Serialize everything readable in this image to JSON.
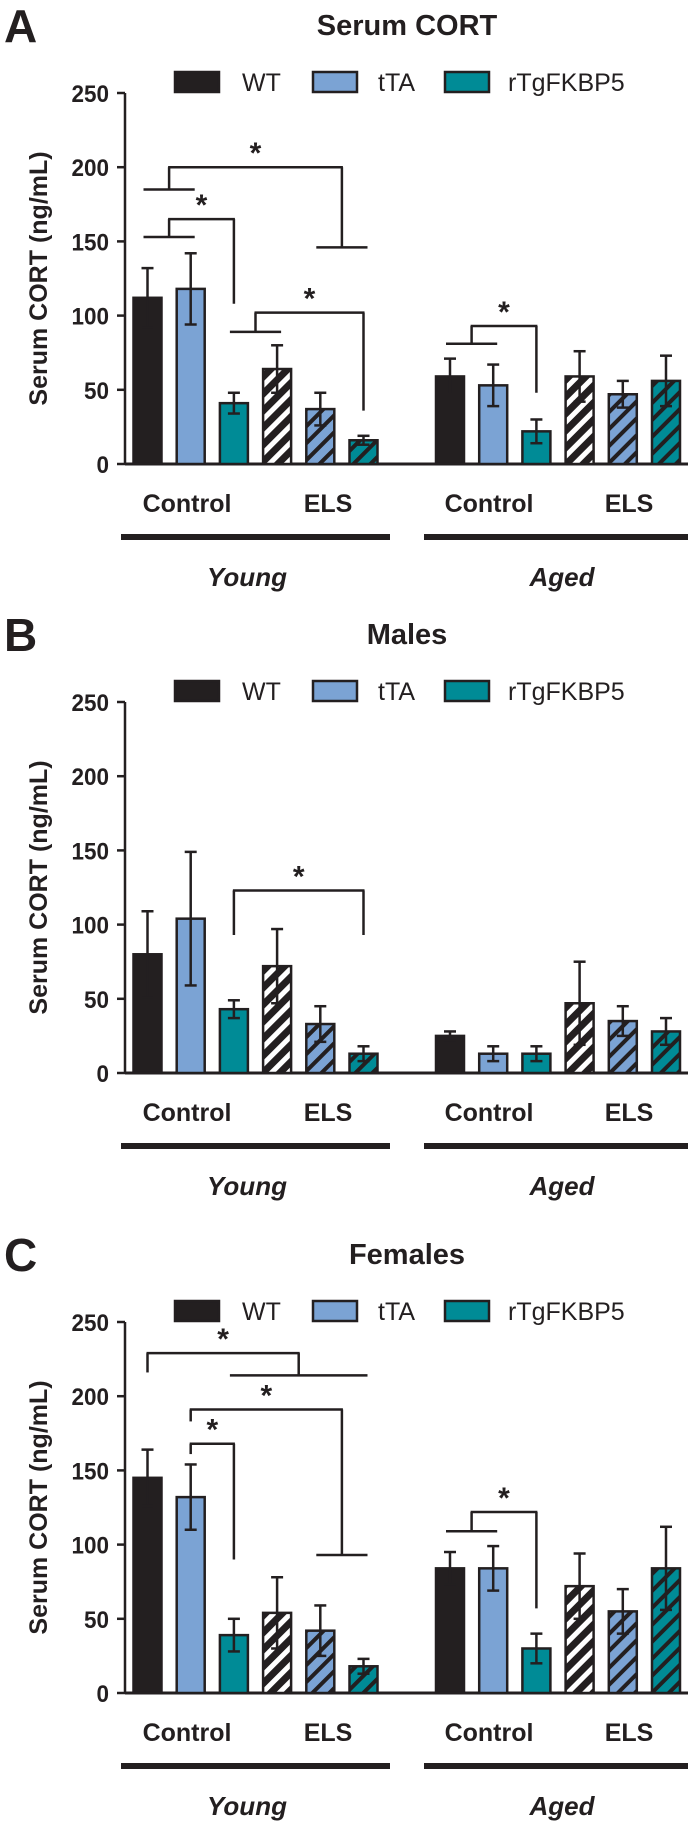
{
  "chart_data": [
    {
      "panel_label": "A",
      "type": "bar",
      "title": "Serum CORT",
      "ylabel": "Serum CORT (ng/mL)",
      "xlabel": "",
      "ylim": [
        0,
        250
      ],
      "yticks": [
        "0",
        "50",
        "100",
        "150",
        "200",
        "250"
      ],
      "legend_position": "top",
      "categories": [
        "Young Control",
        "Young ELS",
        "Aged Control",
        "Aged ELS"
      ],
      "condition_labels": [
        "Control",
        "ELS",
        "Control",
        "ELS"
      ],
      "group_labels": [
        "Young",
        "Aged"
      ],
      "series": [
        {
          "name": "WT",
          "color": "#231f20",
          "values": [
            112,
            64,
            59,
            59
          ],
          "errors": [
            20,
            16,
            12,
            17
          ]
        },
        {
          "name": "tTA",
          "color": "#7ba3d4",
          "values": [
            118,
            37,
            53,
            47
          ],
          "errors": [
            24,
            11,
            14,
            9
          ]
        },
        {
          "name": "rTgFKBP5",
          "color": "#008b96",
          "values": [
            41,
            16,
            22,
            56
          ],
          "errors": [
            7,
            3,
            8,
            17
          ]
        }
      ],
      "significance": [
        {
          "left": {
            "bars": [
              0,
              1
            ],
            "y": 185
          },
          "right": {
            "bars": [
              4,
              5
            ],
            "y": 146
          },
          "top": 200,
          "label": "*"
        },
        {
          "left": {
            "bars": [
              0,
              1
            ],
            "y": 153
          },
          "right": {
            "bars": [
              2,
              2
            ],
            "y": 108
          },
          "top": 165,
          "label": "*"
        },
        {
          "left": {
            "bars": [
              2,
              3
            ],
            "y": 89
          },
          "right": {
            "bars": [
              5,
              5
            ],
            "y": 36
          },
          "top": 102,
          "label": "*"
        },
        {
          "left": {
            "bars": [
              6,
              7
            ],
            "y": 81
          },
          "right": {
            "bars": [
              8,
              8
            ],
            "y": 48
          },
          "top": 93,
          "label": "*"
        }
      ]
    },
    {
      "panel_label": "B",
      "type": "bar",
      "title": "Males",
      "ylabel": "Serum CORT (ng/mL)",
      "xlabel": "",
      "ylim": [
        0,
        250
      ],
      "yticks": [
        "0",
        "50",
        "100",
        "150",
        "200",
        "250"
      ],
      "legend_position": "top",
      "categories": [
        "Young Control",
        "Young ELS",
        "Aged Control",
        "Aged ELS"
      ],
      "condition_labels": [
        "Control",
        "ELS",
        "Control",
        "ELS"
      ],
      "group_labels": [
        "Young",
        "Aged"
      ],
      "series": [
        {
          "name": "WT",
          "color": "#231f20",
          "values": [
            80,
            72,
            25,
            47
          ],
          "errors": [
            29,
            25,
            3,
            28
          ]
        },
        {
          "name": "tTA",
          "color": "#7ba3d4",
          "values": [
            104,
            33,
            13,
            35
          ],
          "errors": [
            45,
            12,
            5,
            10
          ]
        },
        {
          "name": "rTgFKBP5",
          "color": "#008b96",
          "values": [
            43,
            13,
            13,
            28
          ],
          "errors": [
            6,
            5,
            5,
            9
          ]
        }
      ],
      "significance": [
        {
          "left": {
            "bars": [
              2,
              2
            ],
            "y": 93
          },
          "right": {
            "bars": [
              5,
              5
            ],
            "y": 93
          },
          "top": 123,
          "label": "*"
        }
      ]
    },
    {
      "panel_label": "C",
      "type": "bar",
      "title": "Females",
      "ylabel": "Serum CORT (ng/mL)",
      "xlabel": "",
      "ylim": [
        0,
        250
      ],
      "yticks": [
        "0",
        "50",
        "100",
        "150",
        "200",
        "250"
      ],
      "legend_position": "top",
      "categories": [
        "Young Control",
        "Young ELS",
        "Aged Control",
        "Aged ELS"
      ],
      "condition_labels": [
        "Control",
        "ELS",
        "Control",
        "ELS"
      ],
      "group_labels": [
        "Young",
        "Aged"
      ],
      "series": [
        {
          "name": "WT",
          "color": "#231f20",
          "values": [
            145,
            54,
            84,
            72
          ],
          "errors": [
            19,
            24,
            11,
            22
          ]
        },
        {
          "name": "tTA",
          "color": "#7ba3d4",
          "values": [
            132,
            42,
            84,
            55
          ],
          "errors": [
            22,
            17,
            15,
            15
          ]
        },
        {
          "name": "rTgFKBP5",
          "color": "#008b96",
          "values": [
            39,
            18,
            30,
            84
          ],
          "errors": [
            11,
            5,
            10,
            28
          ]
        }
      ],
      "significance": [
        {
          "left": {
            "bars": [
              0,
              0
            ],
            "y": 216
          },
          "right": {
            "bars": [
              2,
              5
            ],
            "y": 214
          },
          "top": 229,
          "label": "*"
        },
        {
          "left": {
            "bars": [
              1,
              1
            ],
            "y": 183
          },
          "right": {
            "bars": [
              4,
              5
            ],
            "y": 93
          },
          "top": 191,
          "label": "*"
        },
        {
          "left": {
            "bars": [
              1,
              1
            ],
            "y": 161
          },
          "right": {
            "bars": [
              2,
              2
            ],
            "y": 90
          },
          "top": 168,
          "label": "*"
        },
        {
          "left": {
            "bars": [
              6,
              7
            ],
            "y": 109
          },
          "right": {
            "bars": [
              8,
              8
            ],
            "y": 57
          },
          "top": 122,
          "label": "*"
        }
      ]
    }
  ]
}
